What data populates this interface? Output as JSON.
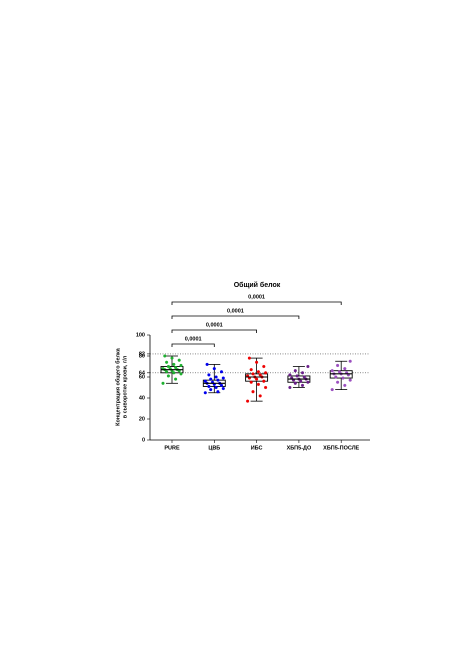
{
  "chart_data": {
    "type": "box",
    "title": "Общий белок",
    "y_label": [
      "Концентрация общего белка",
      "в сыворотке крови, г/л"
    ],
    "categories": [
      "PURE",
      "ЦВБ",
      "ИБС",
      "ХБП5-ДО",
      "ХБП5-ПОСЛЕ"
    ],
    "ylim": [
      0,
      100
    ],
    "yticks": [
      0,
      20,
      40,
      60,
      64,
      80,
      82,
      100
    ],
    "reference_lines": [
      64,
      82
    ],
    "comparisons": [
      "0,0001",
      "0,0001",
      "0,0001",
      "0,0001"
    ],
    "boxes": [
      {
        "color": "#1fb030",
        "min": 54,
        "q1": 64,
        "median": 67,
        "q3": 70,
        "max": 80,
        "points": [
          54,
          58,
          61,
          63,
          64,
          65,
          66,
          66,
          67,
          67,
          68,
          68,
          69,
          70,
          71,
          72,
          74,
          76,
          78,
          80
        ]
      },
      {
        "color": "#0000ee",
        "min": 45,
        "q1": 51,
        "median": 54,
        "q3": 57,
        "max": 72,
        "points": [
          45,
          46,
          48,
          49,
          50,
          51,
          52,
          53,
          54,
          54,
          55,
          56,
          57,
          58,
          59,
          60,
          62,
          65,
          68,
          72
        ]
      },
      {
        "color": "#ee0000",
        "min": 37,
        "q1": 56,
        "median": 60,
        "q3": 63,
        "max": 78,
        "points": [
          37,
          42,
          46,
          50,
          53,
          55,
          56,
          58,
          59,
          60,
          60,
          61,
          62,
          63,
          64,
          65,
          67,
          70,
          74,
          78
        ]
      },
      {
        "color": "#6a1f8a",
        "min": 50,
        "q1": 55,
        "median": 58,
        "q3": 61,
        "max": 70,
        "points": [
          50,
          52,
          54,
          55,
          56,
          57,
          58,
          58,
          59,
          60,
          61,
          62,
          64,
          66,
          70
        ]
      },
      {
        "color": "#9b4fc0",
        "min": 48,
        "q1": 59,
        "median": 63,
        "q3": 66,
        "max": 75,
        "points": [
          48,
          52,
          55,
          57,
          59,
          60,
          62,
          63,
          63,
          64,
          65,
          66,
          68,
          71,
          75
        ]
      }
    ]
  }
}
